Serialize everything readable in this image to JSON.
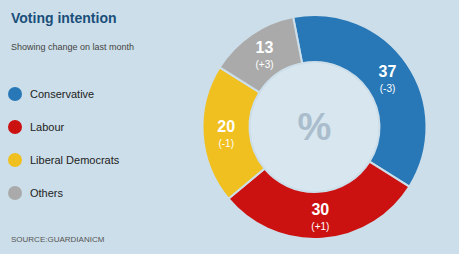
{
  "chart_data": {
    "type": "donut",
    "title": "Voting intention",
    "subtitle": "Showing change on last month",
    "source": "SOURCE:GUARDIANICM",
    "categories": [
      "Conservative",
      "Labour",
      "Liberal Democrats",
      "Others"
    ],
    "values": [
      37,
      30,
      20,
      13
    ],
    "change_labels": [
      "(-3)",
      "(+1)",
      "(-1)",
      "(+3)"
    ],
    "colors": [
      "#2878b8",
      "#cc1111",
      "#f0c020",
      "#aaaaaa"
    ],
    "center_text": "%",
    "data_labels": true,
    "legend": "left"
  }
}
